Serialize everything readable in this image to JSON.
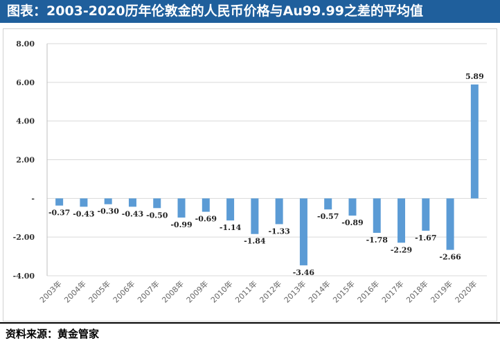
{
  "header": {
    "title": "图表：2003-2020历年伦敦金的人民币价格与Au99.99之差的平均值"
  },
  "footer": {
    "source": "资料来源：黄金管家"
  },
  "colors": {
    "title_bg": "#1f5f9c",
    "bar": "#5b9bd5",
    "grid": "#d9d9d9"
  },
  "chart_data": {
    "type": "bar",
    "title": "",
    "xlabel": "",
    "ylabel": "",
    "ylim": [
      -4,
      8
    ],
    "yticks": [
      8,
      6,
      4,
      2,
      0,
      -2,
      -4
    ],
    "ytick_labels": [
      "8.00",
      "6.00",
      "4.00",
      "2.00",
      "-",
      "-2.00",
      "-4.00"
    ],
    "grid": true,
    "categories": [
      "2003年",
      "2004年",
      "2005年",
      "2006年",
      "2007年",
      "2008年",
      "2009年",
      "2010年",
      "2011年",
      "2012年",
      "2013年",
      "2014年",
      "2015年",
      "2016年",
      "2017年",
      "2018年",
      "2019年",
      "2020年"
    ],
    "values": [
      -0.37,
      -0.43,
      -0.3,
      -0.43,
      -0.5,
      -0.99,
      -0.69,
      -1.14,
      -1.84,
      -1.33,
      -3.46,
      -0.57,
      -0.89,
      -1.78,
      -2.29,
      -1.67,
      -2.66,
      5.89
    ],
    "value_labels": [
      "-0.37",
      "-0.43",
      "-0.30",
      "-0.43",
      "-0.50",
      "-0.99",
      "-0.69",
      "-1.14",
      "-1.84",
      "-1.33",
      "-3.46",
      "-0.57",
      "-0.89",
      "-1.78",
      "-2.29",
      "-1.67",
      "-2.66",
      "5.89"
    ]
  }
}
